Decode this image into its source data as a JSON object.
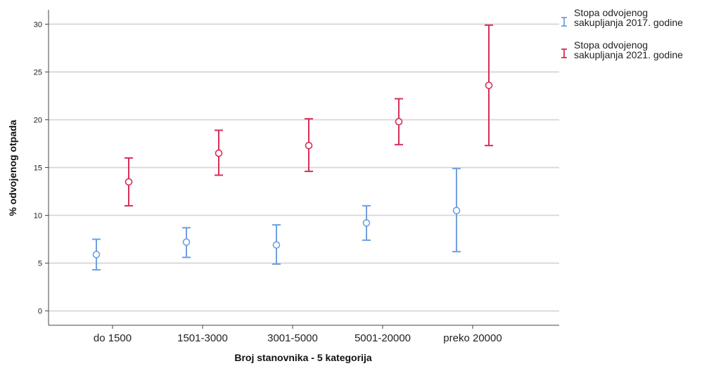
{
  "chart_data": {
    "type": "errorbar",
    "xlabel": "Broj stanovnika - 5 kategorija",
    "ylabel": "% odvojenog otpada",
    "categories": [
      "do 1500",
      "1501-3000",
      "3001-5000",
      "5001-20000",
      "preko 20000"
    ],
    "ylim": [
      -1.5,
      31.5
    ],
    "yticks": [
      0,
      5,
      10,
      15,
      20,
      25,
      30
    ],
    "grid": "horizontal",
    "legend_position": "top-right",
    "series": [
      {
        "name": "Stopa odvojenog sakupljanja 2017. godine",
        "color": "#6FA0DF",
        "mean": [
          5.9,
          7.2,
          6.9,
          9.2,
          10.5
        ],
        "lower": [
          4.3,
          5.6,
          4.9,
          7.4,
          6.2
        ],
        "upper": [
          7.5,
          8.7,
          9.0,
          11.0,
          14.9
        ]
      },
      {
        "name": "Stopa odvojenog sakupljanja 2021. godine",
        "color": "#D52F55",
        "mean": [
          13.5,
          16.5,
          17.3,
          19.8,
          23.6
        ],
        "lower": [
          11.0,
          14.2,
          14.6,
          17.4,
          17.3
        ],
        "upper": [
          16.0,
          18.9,
          20.1,
          22.2,
          29.9
        ]
      }
    ],
    "legend": [
      {
        "line1": "Stopa odvojenog",
        "line2": "sakupljanja 2017. godine"
      },
      {
        "line1": "Stopa odvojenog",
        "line2": "sakupljanja 2021. godine"
      }
    ]
  }
}
